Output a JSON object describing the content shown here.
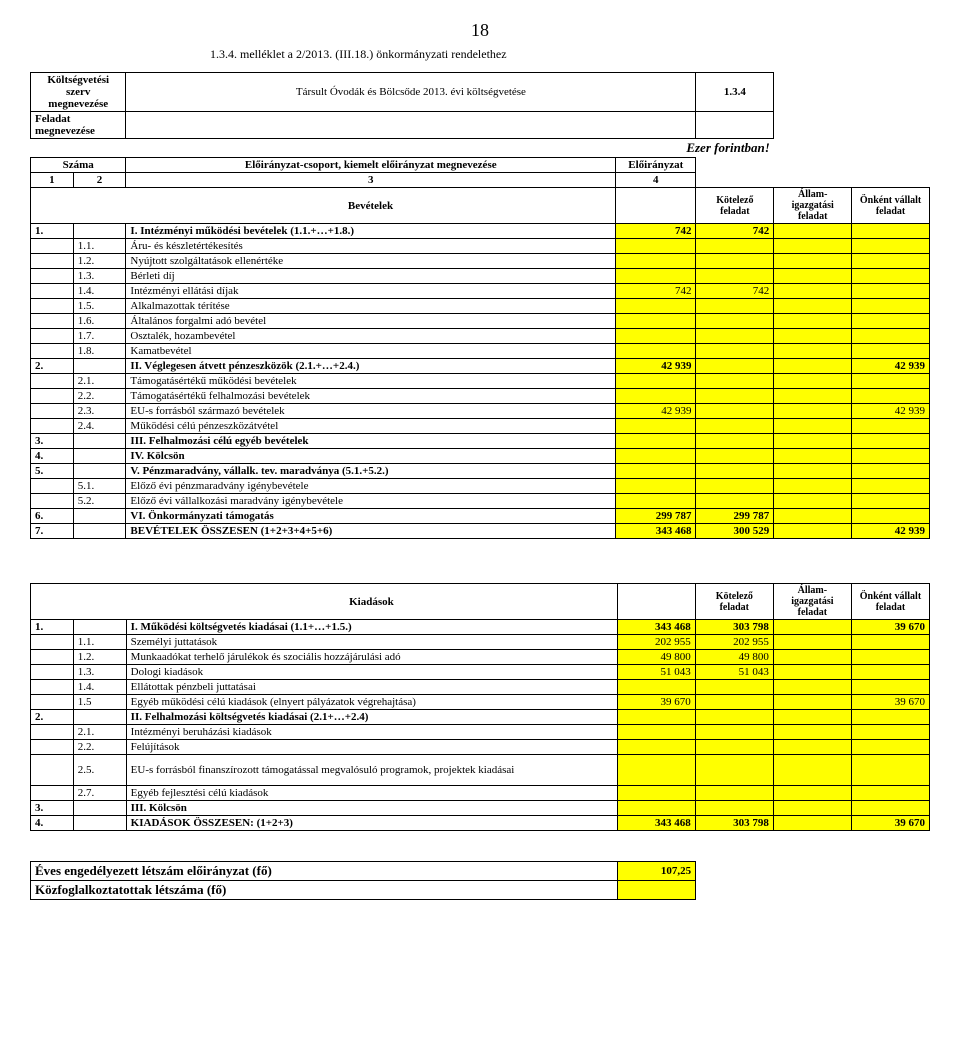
{
  "colors": {
    "background": "#ffffff",
    "highlight": "#ffff00",
    "border": "#000000",
    "text": "#000000"
  },
  "page_number_top": "18",
  "attachment_text": "1.3.4. melléklet a 2/2013. (III.18.) önkormányzati rendelethez",
  "header": {
    "org_label": "Költségvetési szerv megnevezése",
    "org_name": "Társult Óvodák és Bölcsőde 2013. évi költségvetése",
    "org_code": "1.3.4",
    "task_label": "Feladat megnevezése",
    "currency": "Ezer forintban!",
    "col_szama": "Száma",
    "col_eloir_group": "Előirányzat-csoport, kiemelt előirányzat megnevezése",
    "col_eloir": "Előirányzat",
    "c1": "1",
    "c2": "2",
    "c3": "3",
    "c4": "4"
  },
  "section_labels": {
    "bev_title": "Bevételek",
    "kia_title": "Kiadások",
    "kot_feladat": "Kötelező feladat",
    "allam": "Állam-igazgatási feladat",
    "onkent": "Önként vállalt feladat"
  },
  "bev_rows": [
    {
      "a": "1.",
      "b": "",
      "name": "I. Intézményi működési bevételek (1.1.+…+1.8.)",
      "bold": true,
      "v1": "742",
      "v2": "742",
      "v3": "",
      "v4": ""
    },
    {
      "a": "",
      "b": "1.1.",
      "name": "Áru- és készletértékesítés",
      "v1": "",
      "v2": "",
      "v3": "",
      "v4": ""
    },
    {
      "a": "",
      "b": "1.2.",
      "name": "Nyújtott szolgáltatások ellenértéke",
      "v1": "",
      "v2": "",
      "v3": "",
      "v4": ""
    },
    {
      "a": "",
      "b": "1.3.",
      "name": "Bérleti díj",
      "v1": "",
      "v2": "",
      "v3": "",
      "v4": ""
    },
    {
      "a": "",
      "b": "1.4.",
      "name": "Intézményi ellátási díjak",
      "v1": "742",
      "v2": "742",
      "v3": "",
      "v4": ""
    },
    {
      "a": "",
      "b": "1.5.",
      "name": "Alkalmazottak térítése",
      "v1": "",
      "v2": "",
      "v3": "",
      "v4": ""
    },
    {
      "a": "",
      "b": "1.6.",
      "name": "Általános forgalmi adó bevétel",
      "v1": "",
      "v2": "",
      "v3": "",
      "v4": ""
    },
    {
      "a": "",
      "b": "1.7.",
      "name": "Osztalék, hozambevétel",
      "v1": "",
      "v2": "",
      "v3": "",
      "v4": ""
    },
    {
      "a": "",
      "b": "1.8.",
      "name": "Kamatbevétel",
      "v1": "",
      "v2": "",
      "v3": "",
      "v4": ""
    },
    {
      "a": "2.",
      "b": "",
      "name": "II. Véglegesen átvett pénzeszközök (2.1.+…+2.4.)",
      "bold": true,
      "v1": "42 939",
      "v2": "",
      "v3": "",
      "v4": "42 939"
    },
    {
      "a": "",
      "b": "2.1.",
      "name": "Támogatásértékű működési bevételek",
      "v1": "",
      "v2": "",
      "v3": "",
      "v4": ""
    },
    {
      "a": "",
      "b": "2.2.",
      "name": "Támogatásértékű felhalmozási bevételek",
      "v1": "",
      "v2": "",
      "v3": "",
      "v4": ""
    },
    {
      "a": "",
      "b": "2.3.",
      "name": "EU-s forrásból származó bevételek",
      "v1": "42 939",
      "v2": "",
      "v3": "",
      "v4": "42 939"
    },
    {
      "a": "",
      "b": "2.4.",
      "name": "Működési célú pénzeszközátvétel",
      "v1": "",
      "v2": "",
      "v3": "",
      "v4": ""
    },
    {
      "a": "3.",
      "b": "",
      "name": "III. Felhalmozási célú egyéb bevételek",
      "bold": true,
      "v1": "",
      "v2": "",
      "v3": "",
      "v4": ""
    },
    {
      "a": "4.",
      "b": "",
      "name": "IV. Kölcsön",
      "bold": true,
      "v1": "",
      "v2": "",
      "v3": "",
      "v4": ""
    },
    {
      "a": "5.",
      "b": "",
      "name": "V. Pénzmaradvány, vállalk. tev. maradványa (5.1.+5.2.)",
      "bold": true,
      "v1": "",
      "v2": "",
      "v3": "",
      "v4": ""
    },
    {
      "a": "",
      "b": "5.1.",
      "name": "Előző évi pénzmaradvány igénybevétele",
      "v1": "",
      "v2": "",
      "v3": "",
      "v4": ""
    },
    {
      "a": "",
      "b": "5.2.",
      "name": "Előző évi vállalkozási maradvány igénybevétele",
      "v1": "",
      "v2": "",
      "v3": "",
      "v4": ""
    },
    {
      "a": "6.",
      "b": "",
      "name": "VI. Önkormányzati támogatás",
      "bold": true,
      "v1": "299 787",
      "v2": "299 787",
      "v3": "",
      "v4": ""
    },
    {
      "a": "7.",
      "b": "",
      "name": "BEVÉTELEK ÖSSZESEN (1+2+3+4+5+6)",
      "bold": true,
      "v1": "343 468",
      "v2": "300 529",
      "v3": "",
      "v4": "42 939"
    }
  ],
  "kia_rows": [
    {
      "a": "1.",
      "b": "",
      "name": "I. Működési költségvetés kiadásai (1.1+…+1.5.)",
      "bold": true,
      "v1": "343 468",
      "v2": "303 798",
      "v3": "",
      "v4": "39 670"
    },
    {
      "a": "",
      "b": "1.1.",
      "name": "Személyi  juttatások",
      "v1": "202 955",
      "v2": "202 955",
      "v3": "",
      "v4": ""
    },
    {
      "a": "",
      "b": "1.2.",
      "name": "Munkaadókat terhelő járulékok és szociális hozzájárulási adó",
      "v1": "49 800",
      "v2": "49 800",
      "v3": "",
      "v4": ""
    },
    {
      "a": "",
      "b": "1.3.",
      "name": "Dologi  kiadások",
      "v1": "51 043",
      "v2": "51 043",
      "v3": "",
      "v4": ""
    },
    {
      "a": "",
      "b": "1.4.",
      "name": "Ellátottak pénzbeli juttatásai",
      "v1": "",
      "v2": "",
      "v3": "",
      "v4": ""
    },
    {
      "a": "",
      "b": "1.5",
      "name": "Egyéb működési célú kiadások (elnyert pályázatok végrehajtása)",
      "v1": "39 670",
      "v2": "",
      "v3": "",
      "v4": "39 670"
    },
    {
      "a": "2.",
      "b": "",
      "name": "II. Felhalmozási költségvetés kiadásai (2.1+…+2.4)",
      "bold": true,
      "v1": "",
      "v2": "",
      "v3": "",
      "v4": ""
    },
    {
      "a": "",
      "b": "2.1.",
      "name": "Intézményi beruházási kiadások",
      "v1": "",
      "v2": "",
      "v3": "",
      "v4": ""
    },
    {
      "a": "",
      "b": "2.2.",
      "name": "Felújítások",
      "v1": "",
      "v2": "",
      "v3": "",
      "v4": ""
    },
    {
      "a": "",
      "b": "2.5.",
      "name": "EU-s forrásból finanszírozott támogatással megvalósuló programok, projektek kiadásai",
      "tall": true,
      "v1": "",
      "v2": "",
      "v3": "",
      "v4": ""
    },
    {
      "a": "",
      "b": "2.7.",
      "name": "Egyéb fejlesztési célú kiadások",
      "v1": "",
      "v2": "",
      "v3": "",
      "v4": ""
    },
    {
      "a": "3.",
      "b": "",
      "name": "III. Kölcsön",
      "bold": true,
      "v1": "",
      "v2": "",
      "v3": "",
      "v4": ""
    },
    {
      "a": "4.",
      "b": "",
      "name": "KIADÁSOK ÖSSZESEN: (1+2+3)",
      "bold": true,
      "v1": "343 468",
      "v2": "303 798",
      "v3": "",
      "v4": "39 670"
    }
  ],
  "footer": {
    "eves_label": "Éves engedélyezett létszám előirányzat (fő)",
    "eves_value": "107,25",
    "kozfog_label": "Közfoglalkoztatottak létszáma (fő)"
  }
}
